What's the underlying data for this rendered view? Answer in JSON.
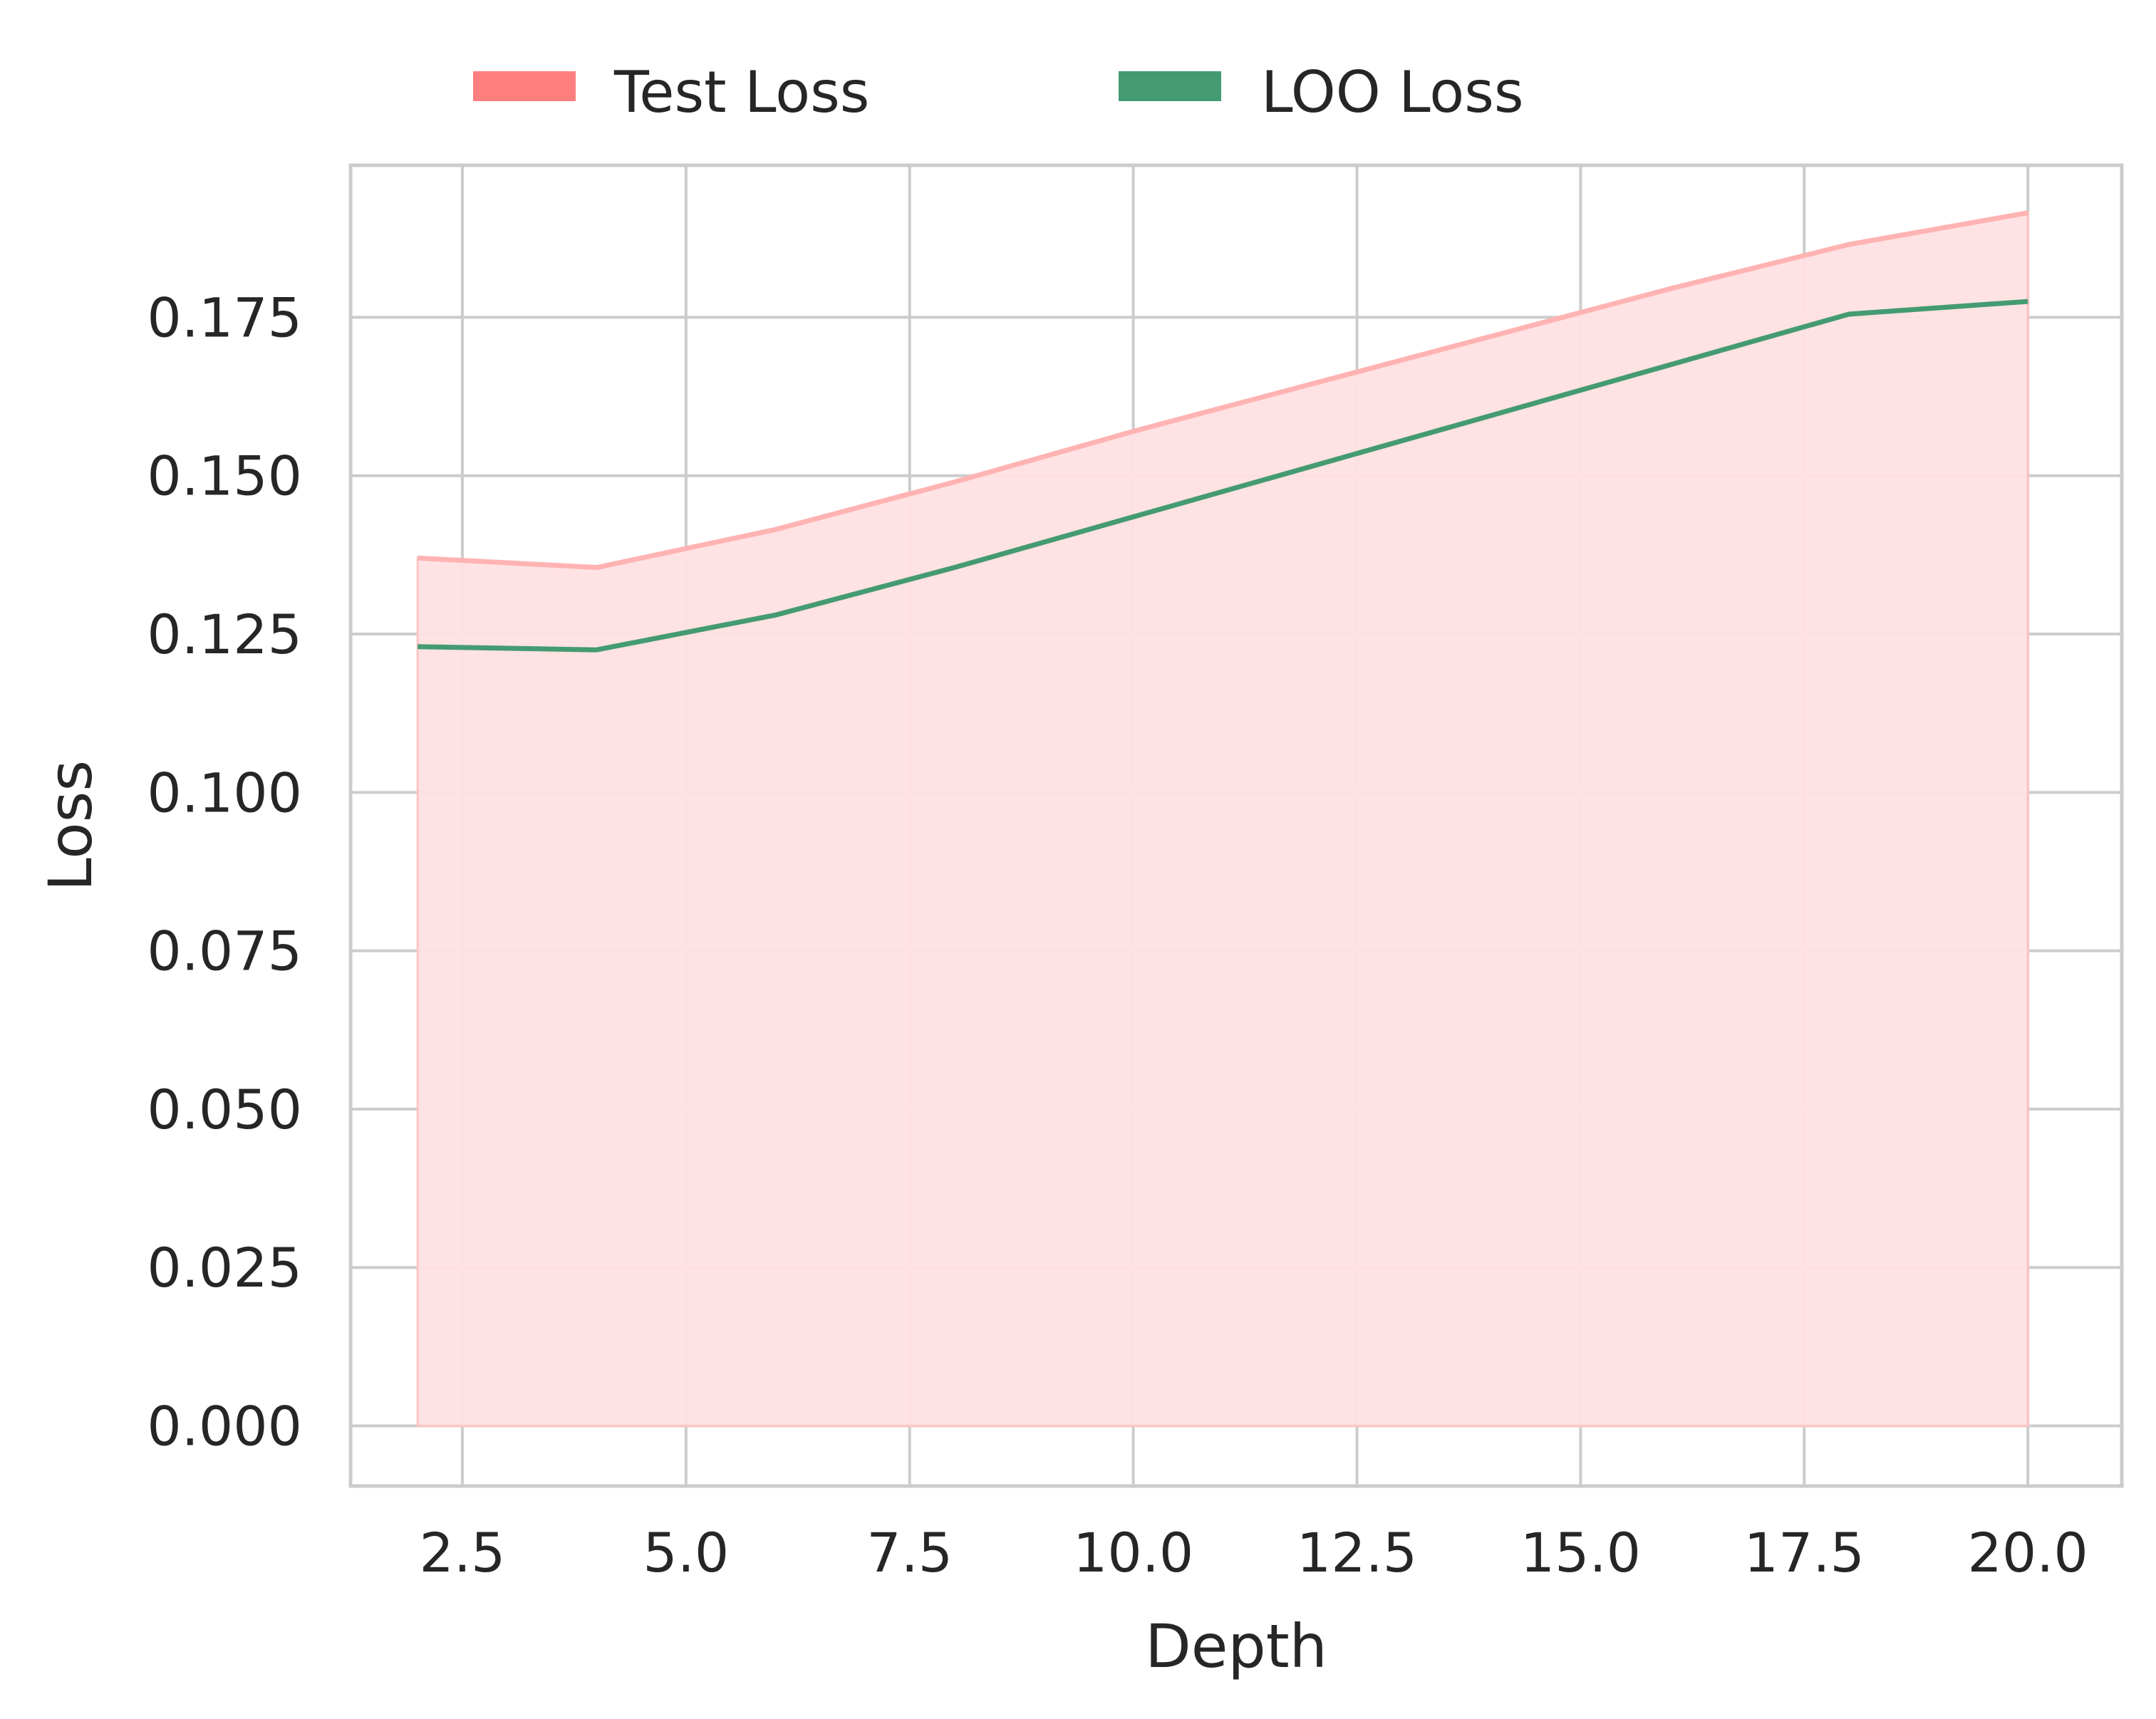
{
  "chart_data": {
    "type": "area",
    "x": [
      2,
      4,
      6,
      8,
      10,
      12,
      14,
      16,
      18,
      20
    ],
    "series": [
      {
        "name": "Test Loss",
        "values": [
          0.137,
          0.1355,
          0.1415,
          0.149,
          0.157,
          0.1645,
          0.172,
          0.1795,
          0.1865,
          0.1915
        ],
        "color": "#ff7f7f",
        "line_color": "#ffb3b3",
        "fill_color": "#ffe0e3",
        "style": "filled-area"
      },
      {
        "name": "LOO Loss",
        "values": [
          0.123,
          0.1225,
          0.128,
          0.1355,
          0.1435,
          0.1515,
          0.1595,
          0.1675,
          0.1755,
          0.1775
        ],
        "color": "#449b72",
        "style": "line"
      }
    ],
    "xlabel": "Depth",
    "ylabel": "Loss",
    "xlim": [
      1.25,
      21.05
    ],
    "ylim": [
      -0.0095,
      0.199
    ],
    "xticks": [
      2.5,
      5.0,
      7.5,
      10.0,
      12.5,
      15.0,
      17.5,
      20.0
    ],
    "xtick_labels": [
      "2.5",
      "5.0",
      "7.5",
      "10.0",
      "12.5",
      "15.0",
      "17.5",
      "20.0"
    ],
    "yticks": [
      0.0,
      0.025,
      0.05,
      0.075,
      0.1,
      0.125,
      0.15,
      0.175
    ],
    "ytick_labels": [
      "0.000",
      "0.025",
      "0.050",
      "0.075",
      "0.100",
      "0.125",
      "0.150",
      "0.175"
    ],
    "grid": true,
    "legend_position": "top-center"
  }
}
